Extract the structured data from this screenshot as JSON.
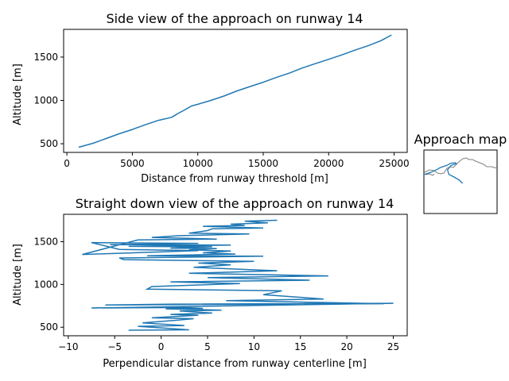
{
  "colors": {
    "line": "#1f77b4",
    "map_border": "#808080",
    "axes": "#000000"
  },
  "chart_data": [
    {
      "type": "line",
      "title": "Side view of the approach on runway 14",
      "xlabel": "Distance from runway threshold [m]",
      "ylabel": "Altitude [m]",
      "xlim": [
        -250,
        26000
      ],
      "ylim": [
        400,
        1820
      ],
      "xticks": [
        0,
        5000,
        10000,
        15000,
        20000,
        25000
      ],
      "xtick_labels": [
        "0",
        "5000",
        "10000",
        "15000",
        "20000",
        "25000"
      ],
      "yticks": [
        500,
        1000,
        1500
      ],
      "ytick_labels": [
        "500",
        "1000",
        "1500"
      ],
      "grid": false,
      "series": [
        {
          "x": [
            900,
            2000,
            3000,
            4000,
            5000,
            6000,
            7000,
            8000,
            8500,
            9000,
            9500,
            10000,
            11000,
            12000,
            13000,
            14000,
            15000,
            16000,
            17000,
            18000,
            19000,
            20000,
            21000,
            22000,
            23000,
            24000,
            24800
          ],
          "y": [
            460,
            505,
            560,
            615,
            665,
            720,
            770,
            805,
            850,
            890,
            935,
            955,
            1000,
            1050,
            1110,
            1160,
            1210,
            1265,
            1315,
            1375,
            1425,
            1475,
            1525,
            1580,
            1630,
            1690,
            1755
          ]
        }
      ]
    },
    {
      "type": "line",
      "title": "Straight down view of the approach on runway 14",
      "xlabel": "Perpendicular distance from runway centerline [m]",
      "ylabel": "Altitude [m]",
      "xlim": [
        -10.5,
        26.5
      ],
      "ylim": [
        400,
        1820
      ],
      "xticks": [
        -10,
        -5,
        0,
        5,
        10,
        15,
        20,
        25
      ],
      "xtick_labels": [
        "−10",
        "−5",
        "0",
        "5",
        "10",
        "15",
        "20",
        "25"
      ],
      "yticks": [
        500,
        1000,
        1500
      ],
      "ytick_labels": [
        "500",
        "1000",
        "1500"
      ],
      "grid": false,
      "series": [
        {
          "x": [
            -3.5,
            3,
            -2.5,
            2.5,
            -2,
            1.5,
            3.5,
            -1,
            4,
            1,
            5.5,
            2,
            6.5,
            0.5,
            4.5,
            2.5,
            -7.5,
            25,
            1.5,
            -6,
            24,
            7,
            17.5,
            11,
            13,
            -1.5,
            -1,
            8.5,
            1,
            16,
            5,
            18,
            3,
            12.5,
            3.5,
            7.5,
            4,
            10,
            -4,
            -4.5,
            11,
            -1.5,
            8,
            4.5,
            7.5,
            3,
            6,
            1,
            5.5,
            -3.5,
            7.5,
            -5.5,
            4,
            -7.5,
            -4.5,
            4,
            -8.5,
            -2.5,
            6,
            -1,
            2,
            9.5,
            3,
            5,
            5.5,
            11,
            4.5,
            9,
            7.5,
            11.5,
            9,
            12.5
          ],
          "y": [
            465,
            470,
            510,
            520,
            550,
            580,
            600,
            610,
            640,
            650,
            665,
            690,
            700,
            715,
            720,
            730,
            725,
            780,
            770,
            760,
            775,
            810,
            830,
            880,
            925,
            945,
            975,
            1010,
            1030,
            1050,
            1080,
            1100,
            1130,
            1160,
            1200,
            1230,
            1250,
            1270,
            1290,
            1310,
            1330,
            1335,
            1355,
            1370,
            1390,
            1405,
            1420,
            1425,
            1440,
            1445,
            1460,
            1465,
            1480,
            1490,
            1410,
            1395,
            1350,
            1520,
            1530,
            1550,
            1570,
            1590,
            1600,
            1630,
            1650,
            1660,
            1680,
            1690,
            1705,
            1720,
            1740,
            1750
          ]
        }
      ]
    },
    {
      "type": "map",
      "title": "Approach map",
      "grid": false,
      "series": [
        {
          "name": "",
          "x": [
            0.0,
            0.15,
            0.3,
            0.35,
            0.5,
            0.6,
            0.7,
            0.72,
            0.6,
            0.52,
            0.55,
            0.65,
            0.78,
            0.86
          ],
          "y": [
            0.2,
            0.25,
            0.32,
            0.35,
            0.4,
            0.45,
            0.46,
            0.44,
            0.4,
            0.3,
            0.2,
            0.15,
            0.08,
            0.0
          ]
        }
      ]
    }
  ]
}
